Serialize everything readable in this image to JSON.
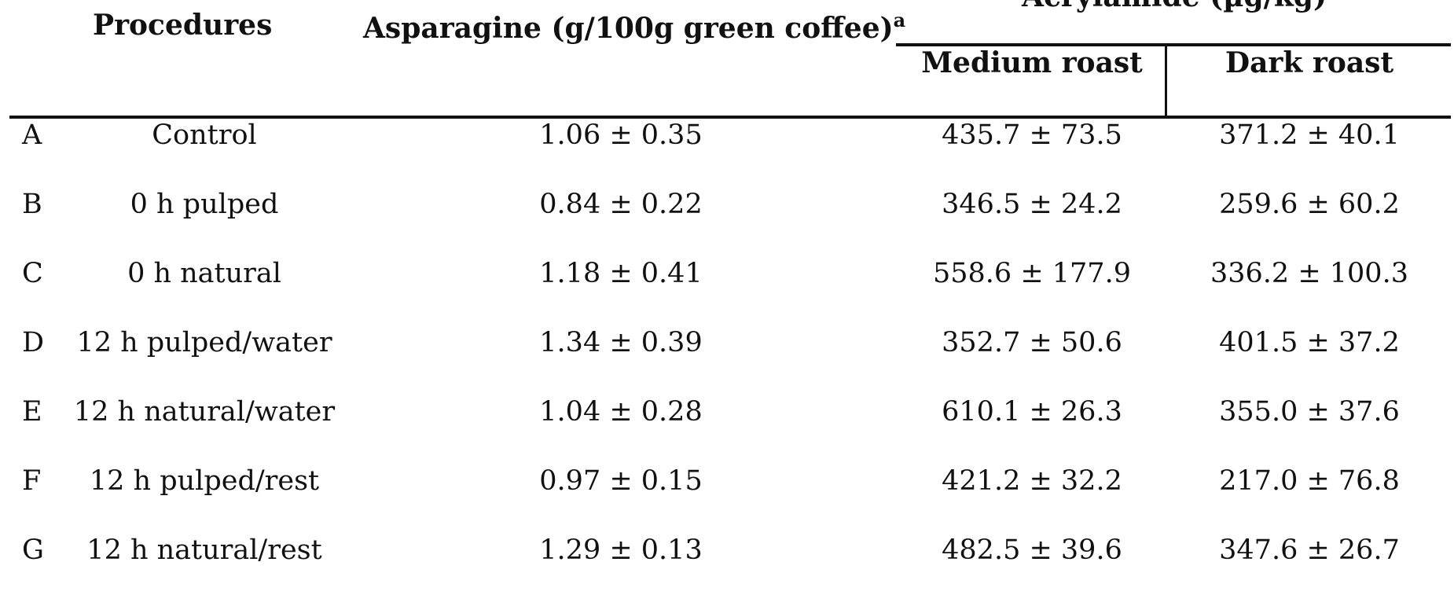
{
  "table": {
    "headers": {
      "procedures": "Procedures",
      "asparagine": "Asparagine (g/100g green coffee)",
      "asparagine_sup": "a",
      "acrylamide": "Acrylamide (µg/kg)",
      "medium": "Medium roast",
      "dark": "Dark roast"
    },
    "rows": [
      {
        "id": "A",
        "procedure": "Control",
        "asparagine": "1.06 ± 0.35",
        "medium": "435.7 ± 73.5",
        "dark": "371.2 ± 40.1"
      },
      {
        "id": "B",
        "procedure": "0 h pulped",
        "asparagine": "0.84 ± 0.22",
        "medium": "346.5 ± 24.2",
        "dark": "259.6 ± 60.2"
      },
      {
        "id": "C",
        "procedure": "0 h natural",
        "asparagine": "1.18 ± 0.41",
        "medium": "558.6 ± 177.9",
        "dark": "336.2 ± 100.3"
      },
      {
        "id": "D",
        "procedure": "12 h pulped/water",
        "asparagine": "1.34 ± 0.39",
        "medium": "352.7 ± 50.6",
        "dark": "401.5 ± 37.2"
      },
      {
        "id": "E",
        "procedure": "12 h natural/water",
        "asparagine": "1.04 ± 0.28",
        "medium": "610.1 ± 26.3",
        "dark": "355.0 ± 37.6"
      },
      {
        "id": "F",
        "procedure": "12 h pulped/rest",
        "asparagine": "0.97 ± 0.15",
        "medium": "421.2 ± 32.2",
        "dark": "217.0 ± 76.8"
      },
      {
        "id": "G",
        "procedure": "12 h natural/rest",
        "asparagine": "1.29 ± 0.13",
        "medium": "482.5 ± 39.6",
        "dark": "347.6 ± 26.7"
      }
    ]
  }
}
